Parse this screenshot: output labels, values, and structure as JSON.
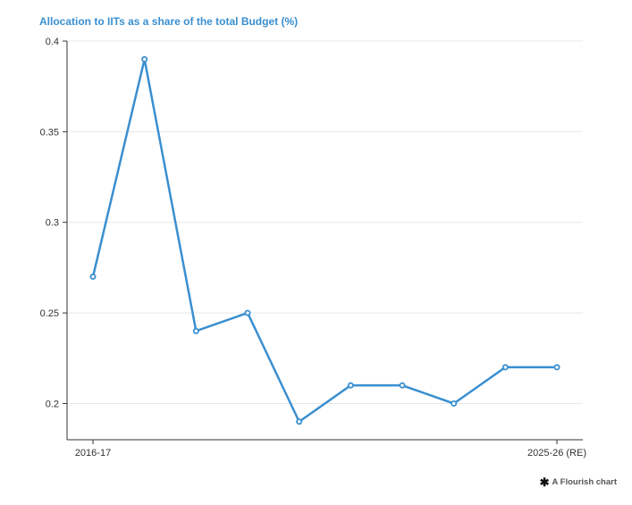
{
  "colors": {
    "title": "#3a8fd0",
    "line": "#3a8fd0",
    "grid": "#e8e8e8",
    "axis": "#333333",
    "tick_text": "#333333"
  },
  "credit": {
    "icon": "flourish-asterisk-icon",
    "label": "A Flourish chart"
  },
  "chart_data": {
    "type": "line",
    "title": "Allocation to IITs as a share of the total Budget (%)",
    "xlabel": "",
    "ylabel": "",
    "x_tick_labels": [
      "2016-17",
      "2025-26 (RE)"
    ],
    "y_ticks": [
      "0.2",
      "0.25",
      "0.3",
      "0.35",
      "0.4"
    ],
    "ylim": [
      0.18,
      0.4
    ],
    "grid": true,
    "series": [
      {
        "values": [
          0.27,
          0.39,
          0.24,
          0.25,
          0.19,
          0.21,
          0.21,
          0.2,
          0.22,
          0.22
        ]
      }
    ]
  }
}
